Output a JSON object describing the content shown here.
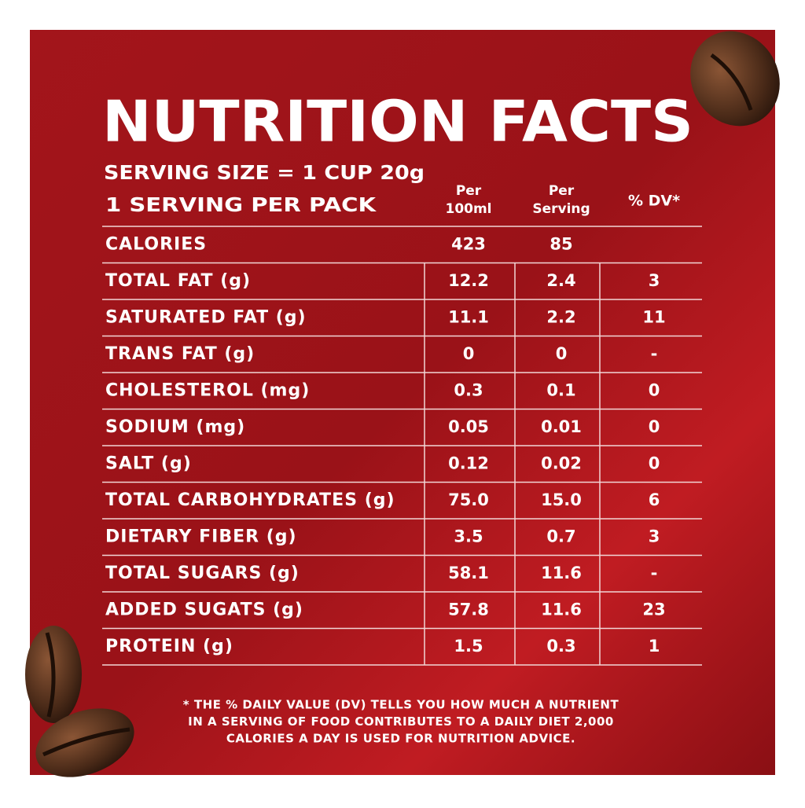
{
  "header": {
    "title": "NUTRITION FACTS",
    "serving_size": "SERVING SIZE = 1 CUP 20g",
    "servings": "1 SERVING PER PACK"
  },
  "table": {
    "columns": [
      [
        "Per",
        "100ml"
      ],
      [
        "Per",
        "Serving"
      ],
      [
        "% DV*"
      ]
    ],
    "rows": [
      [
        "CALORIES",
        "423",
        "85"
      ],
      [
        "TOTAL FAT (g)",
        "12.2",
        "2.4",
        "3"
      ],
      [
        "SATURATED FAT (g)",
        "11.1",
        "2.2",
        "11"
      ],
      [
        "TRANS FAT (g)",
        "0",
        "0",
        "-"
      ],
      [
        "CHOLESTEROL (mg)",
        "0.3",
        "0.1",
        "0"
      ],
      [
        "SODIUM (mg)",
        "0.05",
        "0.01",
        "0"
      ],
      [
        "SALT (g)",
        "0.12",
        "0.02",
        "0"
      ],
      [
        "TOTAL CARBOHYDRATES (g)",
        "75.0",
        "15.0",
        "6"
      ],
      [
        "DIETARY FIBER (g)",
        "3.5",
        "0.7",
        "3"
      ],
      [
        "TOTAL SUGARS (g)",
        "58.1",
        "11.6",
        "-"
      ],
      [
        "ADDED SUGATS (g)",
        "57.8",
        "11.6",
        "23"
      ],
      [
        "PROTEIN (g)",
        "1.5",
        "0.3",
        "1"
      ]
    ]
  },
  "footnote": [
    "* THE % DAILY VALUE (DV) TELLS YOU HOW MUCH A NUTRIENT",
    "IN A SERVING OF FOOD CONTRIBUTES TO A DAILY DIET 2,000",
    "CALORIES A DAY IS USED FOR NUTRITION ADVICE."
  ]
}
